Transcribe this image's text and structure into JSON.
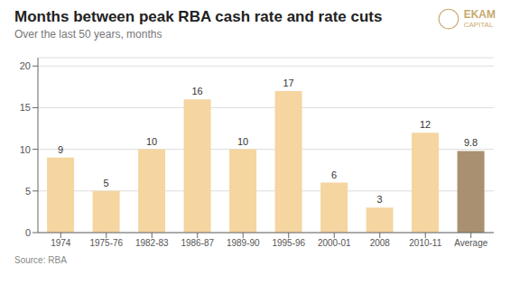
{
  "chart_data": {
    "type": "bar",
    "title": "Months between peak RBA cash rate and rate cuts",
    "subtitle": "Over the last 50 years, months",
    "source": "Source: RBA",
    "annotations": [
      "EKAM",
      "CAPITAL"
    ],
    "categories": [
      "1974",
      "1975-76",
      "1982-83",
      "1986-87",
      "1989-90",
      "1995-96",
      "2000-01",
      "2008",
      "2010-11",
      "Average"
    ],
    "values": [
      9,
      5,
      10,
      16,
      10,
      17,
      6,
      3,
      12,
      9.8
    ],
    "colors": [
      "#F5D5A0",
      "#F5D5A0",
      "#F5D5A0",
      "#F5D5A0",
      "#F5D5A0",
      "#F5D5A0",
      "#F5D5A0",
      "#F5D5A0",
      "#F5D5A0",
      "#A89070"
    ],
    "ylim": [
      0,
      21
    ],
    "yticks": [
      0,
      5,
      10,
      15,
      20
    ],
    "grid": true,
    "data_labels": true
  }
}
